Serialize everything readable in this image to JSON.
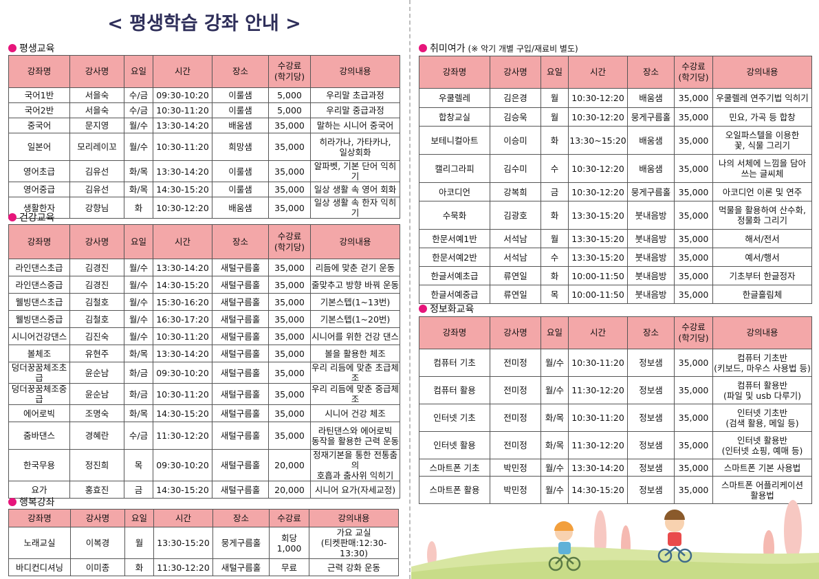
{
  "title": "< 평생학습 강좌 안내 >",
  "headers": {
    "course": "강좌명",
    "instructor": "강사명",
    "day": "요일",
    "time": "시간",
    "place": "장소",
    "fee": "수강료\n(학기당)",
    "fee_short": "수강료",
    "content": "강의내용"
  },
  "sections": {
    "lifelong": {
      "name": "평생교육",
      "rows": [
        [
          "국어1반",
          "서을숙",
          "수/금",
          "09:30-10:20",
          "이룰샘",
          "5,000",
          "우리말 초급과정"
        ],
        [
          "국어2반",
          "서을숙",
          "수/금",
          "10:30-11:20",
          "이룰샘",
          "5,000",
          "우리말 중급과정"
        ],
        [
          "중국어",
          "문지영",
          "월/수",
          "13:30-14:20",
          "배움샘",
          "35,000",
          "말하는 시니어 중국어"
        ],
        [
          "일본어",
          "모리레이꼬",
          "월/수",
          "10:30-11:20",
          "희망샘",
          "35,000",
          "히라가나, 가타카나,\n일상회화"
        ],
        [
          "영어초급",
          "김유선",
          "화/목",
          "13:30-14:20",
          "이룰샘",
          "35,000",
          "알파벳, 기본 단어 익히기"
        ],
        [
          "영어중급",
          "김유선",
          "화/목",
          "14:30-15:20",
          "이룰샘",
          "35,000",
          "일상 생활 속 영어 회화"
        ],
        [
          "생활한자",
          "강향님",
          "화",
          "10:30-12:20",
          "배움샘",
          "35,000",
          "일상 생활 속 한자 익히기"
        ]
      ]
    },
    "health": {
      "name": "건강교육",
      "rows": [
        [
          "라인댄스초급",
          "김경진",
          "월/수",
          "13:30-14:20",
          "새털구름홀",
          "35,000",
          "리듬에 맞춘 걷기 운동"
        ],
        [
          "라인댄스중급",
          "김경진",
          "월/수",
          "14:30-15:20",
          "새털구름홀",
          "35,000",
          "줄맞추고 방향 바꿔 운동"
        ],
        [
          "웰빙댄스초급",
          "김철호",
          "월/수",
          "15:30-16:20",
          "새털구름홀",
          "35,000",
          "기본스텝(1~13번)"
        ],
        [
          "웰빙댄스중급",
          "김철호",
          "월/수",
          "16:30-17:20",
          "새털구름홀",
          "35,000",
          "기본스텝(1~20번)"
        ],
        [
          "시니어건강댄스",
          "김진숙",
          "월/수",
          "10:30-11:20",
          "새털구름홀",
          "35,000",
          "시니어를 위한 건강 댄스"
        ],
        [
          "볼체조",
          "유현주",
          "화/목",
          "13:30-14:20",
          "새털구름홀",
          "35,000",
          "볼을 활용한 체조"
        ],
        [
          "덩더꿍꿈체조초급",
          "윤순남",
          "화/금",
          "09:30-10:20",
          "새털구름홀",
          "35,000",
          "우리 리듬에 맞춘 초급체조"
        ],
        [
          "덩더꿍꿈체조중급",
          "윤순남",
          "화/금",
          "10:30-11:20",
          "새털구름홀",
          "35,000",
          "우리 리듬에 맞춘 중급체조"
        ],
        [
          "에어로빅",
          "조명숙",
          "화/목",
          "14:30-15:20",
          "새털구름홀",
          "35,000",
          "시니어 건강 체조"
        ],
        [
          "줌바댄스",
          "경혜란",
          "수/금",
          "11:30-12:20",
          "새털구름홀",
          "35,000",
          "라틴댄스와 에어로빅\n동작을 활용한 근력 운동"
        ],
        [
          "한국무용",
          "정진희",
          "목",
          "09:30-10:20",
          "새털구름홀",
          "20,000",
          "정재기본을 통한 전통춤의\n호흡과 춤사위 익히기"
        ],
        [
          "요가",
          "홍효진",
          "금",
          "14:30-15:20",
          "새털구름홀",
          "20,000",
          "시니어 요가(자세교정)"
        ]
      ]
    },
    "happy": {
      "name": "행복강좌",
      "rows": [
        [
          "노래교실",
          "이복경",
          "월",
          "13:30-15:20",
          "뭉게구름홀",
          "회당\n1,000",
          "가요 교실\n(티켓판매:12:30-13:30)"
        ],
        [
          "바디컨디셔닝",
          "이미종",
          "화",
          "11:30-12:20",
          "새털구름홀",
          "무료",
          "근력 강화 운동"
        ]
      ]
    },
    "hobby": {
      "name": "취미여가",
      "note": "(※ 악기 개별 구입/재료비 별도)",
      "rows": [
        [
          "우쿨렐레",
          "김은경",
          "월",
          "10:30-12:20",
          "배움샘",
          "35,000",
          "우쿨렐레 연주기법 익히기"
        ],
        [
          "합창교실",
          "김승욱",
          "월",
          "10:30-12:20",
          "뭉게구름홀",
          "35,000",
          "민요, 가곡 등 합창"
        ],
        [
          "보테니컬아트",
          "이승미",
          "화",
          "13:30~15:20",
          "배움샘",
          "35,000",
          "오일파스텔을 이용한\n꽃, 식물 그리기"
        ],
        [
          "캘리그라피",
          "김수미",
          "수",
          "10:30-12:20",
          "배움샘",
          "35,000",
          "나의 서체에 느낌을 담아\n쓰는 글씨체"
        ],
        [
          "아코디언",
          "강복희",
          "금",
          "10:30-12:20",
          "뭉게구름홀",
          "35,000",
          "아코디언 이론 및 연주"
        ],
        [
          "수묵화",
          "김광호",
          "화",
          "13:30-15:20",
          "붓내음방",
          "35,000",
          "먹물을 활용하여 산수화,\n정물화 그리기"
        ],
        [
          "한문서예1반",
          "서석남",
          "월",
          "13:30-15:20",
          "붓내음방",
          "35,000",
          "해서/전서"
        ],
        [
          "한문서예2반",
          "서석남",
          "수",
          "13:30-15:20",
          "붓내음방",
          "35,000",
          "예서/행서"
        ],
        [
          "한글서예초급",
          "류연일",
          "화",
          "10:00-11:50",
          "붓내음방",
          "35,000",
          "기초부터 한글정자"
        ],
        [
          "한글서예중급",
          "류연일",
          "목",
          "10:00-11:50",
          "붓내음방",
          "35,000",
          "한글흘림체"
        ]
      ]
    },
    "info": {
      "name": "정보화교육",
      "rows": [
        [
          "컴퓨터 기초",
          "전미정",
          "월/수",
          "10:30-11:20",
          "정보샘",
          "35,000",
          "컴퓨터 기초반\n(키보드, 마우스 사용법 등)"
        ],
        [
          "컴퓨터 활용",
          "전미정",
          "월/수",
          "11:30-12:20",
          "정보샘",
          "35,000",
          "컴퓨터 활용반\n(파일 및 usb 다루기)"
        ],
        [
          "인터넷 기초",
          "전미정",
          "화/목",
          "10:30-11:20",
          "정보샘",
          "35,000",
          "인터넷 기초반\n(검색 활용, 메일 등)"
        ],
        [
          "인터넷 활용",
          "전미정",
          "화/목",
          "11:30-12:20",
          "정보샘",
          "35,000",
          "인터넷 활용반\n(인터넷 쇼핑, 예매 등)"
        ],
        [
          "스마트폰 기초",
          "박민정",
          "월/수",
          "13:30-14:20",
          "정보샘",
          "35,000",
          "스마트폰 기본 사용법"
        ],
        [
          "스마트폰 활용",
          "박민정",
          "월/수",
          "14:30-15:20",
          "정보샘",
          "35,000",
          "스마트폰 어플리케이션\n활용법"
        ]
      ]
    }
  },
  "colors": {
    "header_fill": "#f3a7a8",
    "bullet": "#e6157a",
    "title": "#2f2f5a"
  },
  "illustration": "children-riding-bicycles-on-hill"
}
